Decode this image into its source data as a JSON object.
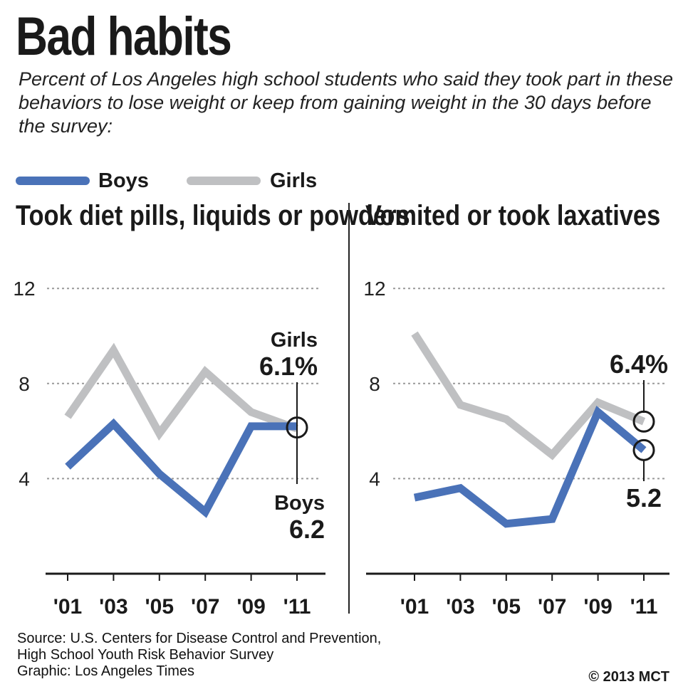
{
  "title": "Bad habits",
  "subtitle": "Percent of Los Angeles high school students who said they took part in these behaviors to lose weight or keep from gaining weight in the 30 days before the survey:",
  "legend": [
    {
      "name": "Boys",
      "color": "#4a72b8"
    },
    {
      "name": "Girls",
      "color": "#bfc0c2"
    }
  ],
  "chart_data": [
    {
      "type": "line",
      "title": "Took diet pills, liquids or powders",
      "x": [
        "'01",
        "'03",
        "'05",
        "'07",
        "'09",
        "'11"
      ],
      "ylim": [
        0,
        12
      ],
      "yticks": [
        4,
        8,
        12
      ],
      "grid": true,
      "series": [
        {
          "name": "Boys",
          "color": "#4a72b8",
          "values": [
            4.5,
            6.3,
            4.2,
            2.6,
            6.2,
            6.2
          ]
        },
        {
          "name": "Girls",
          "color": "#bfc0c2",
          "values": [
            6.6,
            9.4,
            5.9,
            8.5,
            6.8,
            6.1
          ]
        }
      ],
      "annotations": {
        "girls": {
          "name": "Girls",
          "value": "6.1%"
        },
        "boys": {
          "name": "Boys",
          "value": "6.2"
        }
      }
    },
    {
      "type": "line",
      "title": "Vomited or took laxatives",
      "x": [
        "'01",
        "'03",
        "'05",
        "'07",
        "'09",
        "'11"
      ],
      "ylim": [
        0,
        12
      ],
      "yticks": [
        4,
        8,
        12
      ],
      "grid": true,
      "series": [
        {
          "name": "Boys",
          "color": "#4a72b8",
          "values": [
            3.2,
            3.6,
            2.1,
            2.3,
            6.8,
            5.2
          ]
        },
        {
          "name": "Girls",
          "color": "#bfc0c2",
          "values": [
            10.1,
            7.1,
            6.5,
            5.0,
            7.2,
            6.4
          ]
        }
      ],
      "annotations": {
        "girls": {
          "name": "",
          "value": "6.4%"
        },
        "boys": {
          "name": "",
          "value": "5.2"
        }
      }
    }
  ],
  "source": [
    "Source: U.S. Centers for Disease Control and Prevention,",
    "High School Youth Risk Behavior Survey",
    "Graphic: Los Angeles Times"
  ],
  "copyright": "© 2013 MCT"
}
